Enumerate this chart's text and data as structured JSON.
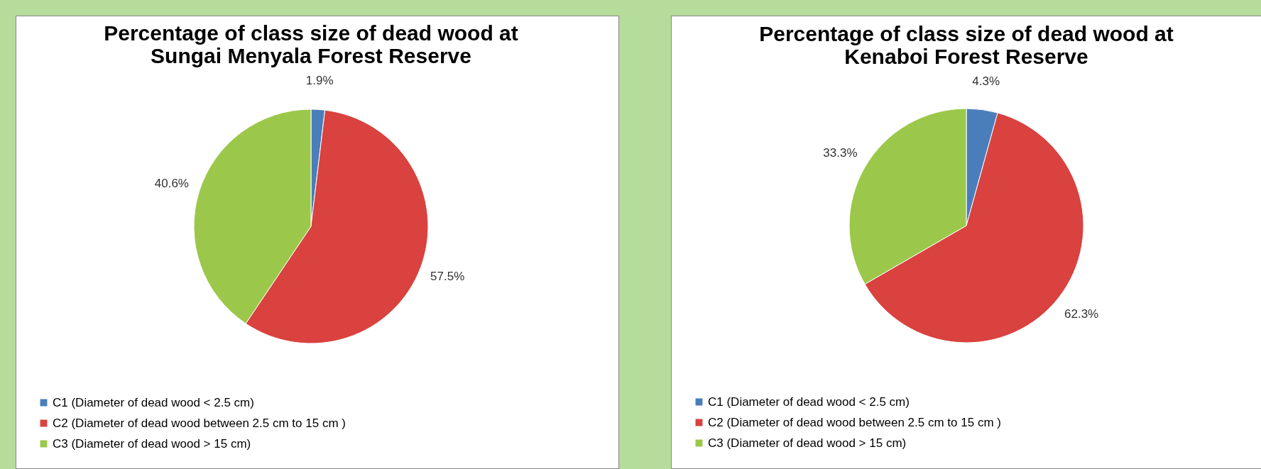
{
  "chart_data": [
    {
      "type": "pie",
      "title": "Percentage of class size of dead wood at Sungai Menyala Forest Reserve",
      "categories": [
        "C1 (Diameter of dead wood < 2.5 cm)",
        "C2 (Diameter of dead wood between 2.5 cm to 15 cm )",
        "C3 (Diameter of dead wood > 15 cm)"
      ],
      "values": [
        1.9,
        57.5,
        40.6
      ],
      "value_labels": [
        "1.9%",
        "57.5%",
        "40.6%"
      ],
      "colors": [
        "#4a7ebb",
        "#d9423f",
        "#9bc84a"
      ],
      "legend": "bottom"
    },
    {
      "type": "pie",
      "title": "Percentage of class size of dead wood at Kenaboi Forest Reserve",
      "categories": [
        "C1 (Diameter of dead wood < 2.5 cm)",
        "C2 (Diameter of dead wood between 2.5 cm to 15 cm )",
        "C3 (Diameter of dead wood > 15 cm)"
      ],
      "values": [
        4.3,
        62.3,
        33.3
      ],
      "value_labels": [
        "4.3%",
        "62.3%",
        "33.3%"
      ],
      "colors": [
        "#4a7ebb",
        "#d9423f",
        "#9bc84a"
      ],
      "legend": "bottom"
    }
  ]
}
